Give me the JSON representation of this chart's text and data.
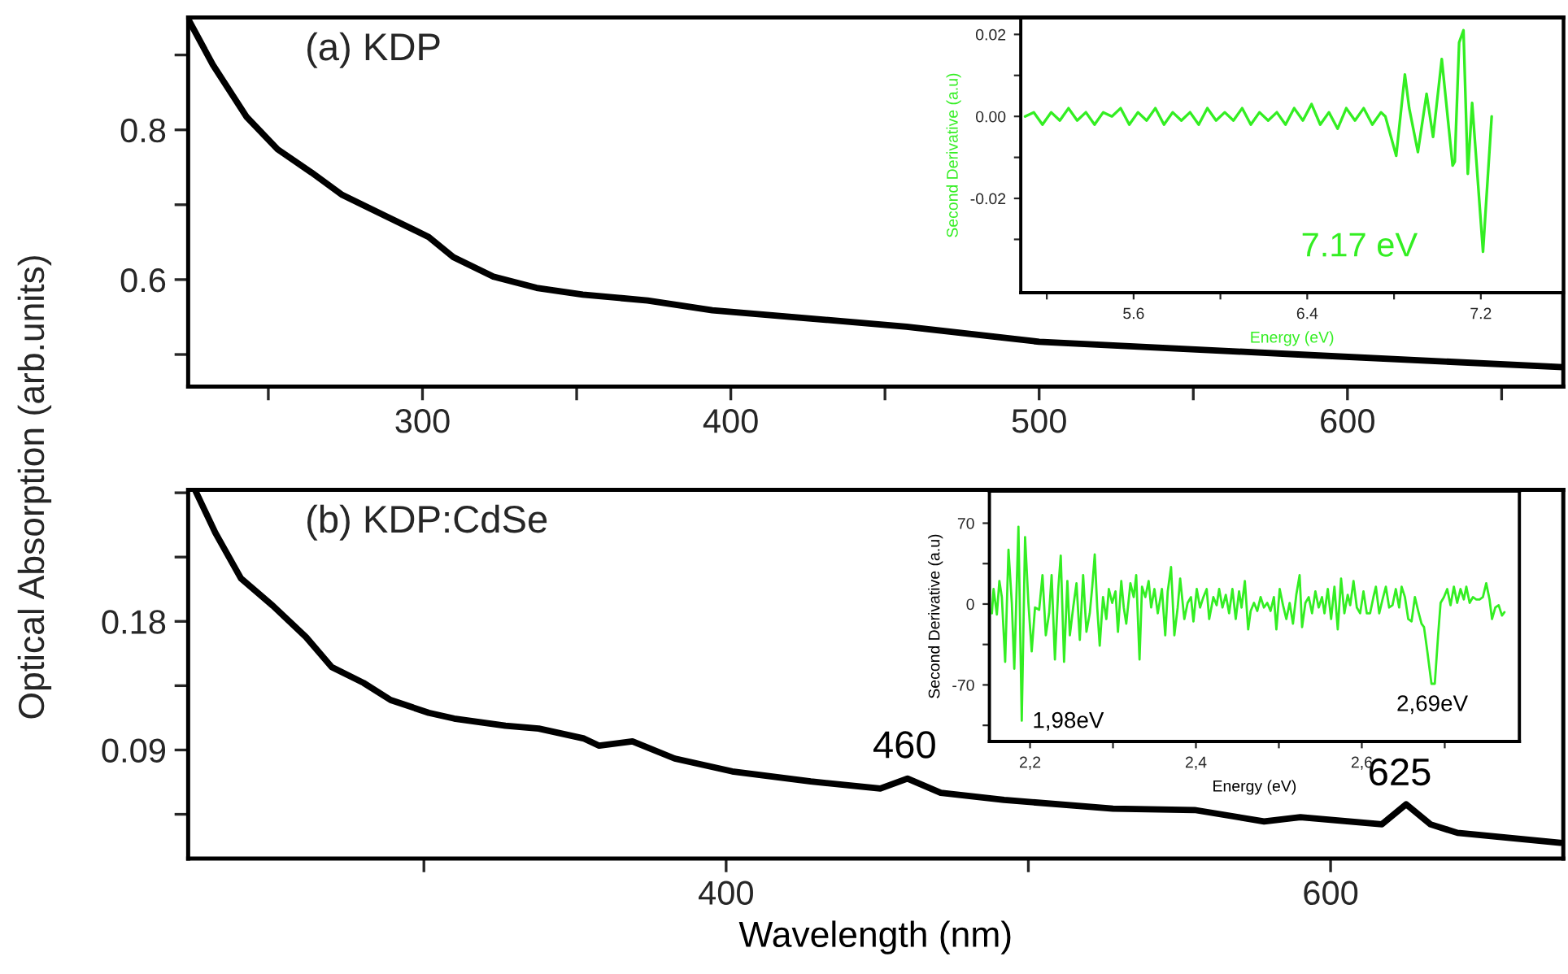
{
  "chart_data": [
    {
      "type": "line",
      "title": "(a) KDP",
      "ylabel": "Optical Absorption (arb.units)",
      "x": [
        224,
        232,
        243,
        253,
        264,
        274,
        289,
        302,
        310,
        323,
        337,
        352,
        373,
        394,
        426,
        457,
        485,
        500,
        584,
        670
      ],
      "series": [
        {
          "color": "#000000",
          "values": [
            0.948,
            0.887,
            0.817,
            0.774,
            0.743,
            0.713,
            0.683,
            0.657,
            0.63,
            0.604,
            0.589,
            0.58,
            0.572,
            0.559,
            0.548,
            0.537,
            0.524,
            0.517,
            0.5,
            0.483
          ]
        }
      ],
      "xlim": [
        224,
        670
      ],
      "ylim": [
        0.457,
        0.95
      ],
      "xticks": [
        {
          "value": 250,
          "label": null
        },
        300,
        {
          "value": 350,
          "label": null
        },
        400,
        {
          "value": 450,
          "label": null
        },
        500,
        {
          "value": 550,
          "label": null
        },
        600,
        {
          "value": 650,
          "label": null
        }
      ],
      "yticks": [
        {
          "value": 0.5,
          "label": null
        },
        0.6,
        {
          "value": 0.7,
          "label": null
        },
        0.8,
        {
          "value": 0.9,
          "label": null
        }
      ]
    },
    {
      "type": "line",
      "xlabel": "Energy (eV)",
      "ylabel": "Second Derivative (a.u)",
      "annotations": [
        "7.17 eV"
      ],
      "x": [
        5.1,
        5.14,
        5.18,
        5.22,
        5.26,
        5.3,
        5.34,
        5.38,
        5.42,
        5.46,
        5.5,
        5.54,
        5.58,
        5.62,
        5.66,
        5.7,
        5.74,
        5.78,
        5.82,
        5.86,
        5.9,
        5.94,
        5.98,
        6.02,
        6.06,
        6.1,
        6.14,
        6.18,
        6.22,
        6.26,
        6.3,
        6.34,
        6.38,
        6.42,
        6.46,
        6.5,
        6.54,
        6.58,
        6.62,
        6.66,
        6.7,
        6.74,
        6.76,
        6.81,
        6.85,
        6.87,
        6.91,
        6.95,
        6.98,
        7.02,
        7.07,
        7.08,
        7.1,
        7.12,
        7.14,
        7.16,
        7.21,
        7.25
      ],
      "series": [
        {
          "color": "#33ee22",
          "values": [
            0.0,
            0.001,
            -0.002,
            0.001,
            -0.001,
            0.002,
            -0.001,
            0.001,
            -0.002,
            0.001,
            0.0,
            0.002,
            -0.002,
            0.001,
            -0.001,
            0.002,
            -0.002,
            0.001,
            -0.001,
            0.001,
            -0.002,
            0.002,
            -0.001,
            0.001,
            -0.001,
            0.002,
            -0.002,
            0.001,
            -0.001,
            0.001,
            -0.002,
            0.002,
            -0.001,
            0.003,
            -0.002,
            0.001,
            -0.003,
            0.002,
            -0.001,
            0.002,
            -0.002,
            0.001,
            0.0,
            -0.0096,
            0.0102,
            0.002,
            -0.0087,
            0.0055,
            -0.005,
            0.014,
            -0.012,
            -0.011,
            0.018,
            0.021,
            -0.014,
            0.0033,
            -0.033,
            0.0
          ]
        }
      ],
      "xlim": [
        5.08,
        7.58
      ],
      "ylim": [
        -0.043,
        0.024
      ],
      "xticks": [
        {
          "value": 5.2,
          "label": null
        },
        5.6,
        {
          "value": 6.0,
          "label": null
        },
        6.4,
        {
          "value": 6.8,
          "label": null
        },
        7.2
      ],
      "yticks": [
        {
          "value": -0.03,
          "label": null
        },
        -0.02,
        {
          "value": -0.01,
          "label": null
        },
        {
          "value": 0,
          "label": "0.00"
        },
        {
          "value": 0.01,
          "label": null
        },
        0.02
      ]
    },
    {
      "type": "line",
      "title": "(b) KDP:CdSe",
      "xlabel": "Wavelength (nm)",
      "annotations": [
        "460",
        "625"
      ],
      "x": [
        224.5,
        231,
        239.5,
        250,
        261,
        269.5,
        280,
        289,
        301.6,
        310,
        327,
        338,
        353,
        358,
        369,
        383,
        402,
        428,
        451,
        460,
        471,
        492,
        528,
        555,
        578,
        590,
        617,
        625,
        633,
        642,
        676
      ],
      "series": [
        {
          "color": "#000000",
          "values": [
            0.271,
            0.242,
            0.21,
            0.191,
            0.169,
            0.148,
            0.137,
            0.125,
            0.116,
            0.112,
            0.107,
            0.105,
            0.098,
            0.093,
            0.096,
            0.084,
            0.075,
            0.068,
            0.063,
            0.07,
            0.06,
            0.055,
            0.049,
            0.048,
            0.04,
            0.043,
            0.038,
            0.052,
            0.038,
            0.032,
            0.025
          ]
        }
      ],
      "xlim": [
        222,
        677
      ],
      "ylim": [
        0.014,
        0.272
      ],
      "xticks": [
        {
          "value": 300,
          "label": null
        },
        400,
        {
          "value": 500,
          "label": null
        },
        600
      ],
      "yticks": [
        {
          "value": 0.045,
          "label": null
        },
        0.09,
        {
          "value": 0.135,
          "label": null
        },
        0.18,
        {
          "value": 0.225,
          "label": null
        },
        {
          "value": 0.27,
          "label": null
        }
      ]
    },
    {
      "type": "line",
      "xlabel": "Energy (eV)",
      "ylabel": "Second Derivative (a.u)",
      "annotations": [
        "1,98eV",
        "2,69eV"
      ],
      "x": [
        2.154,
        2.156,
        2.16,
        2.163,
        2.166,
        2.17,
        2.174,
        2.178,
        2.181,
        2.186,
        2.19,
        2.194,
        2.198,
        2.202,
        2.206,
        2.211,
        2.215,
        2.219,
        2.223,
        2.226,
        2.23,
        2.234,
        2.237,
        2.241,
        2.245,
        2.248,
        2.252,
        2.256,
        2.26,
        2.264,
        2.268,
        2.272,
        2.275,
        2.278,
        2.281,
        2.284,
        2.288,
        2.292,
        2.295,
        2.299,
        2.303,
        2.306,
        2.31,
        2.313,
        2.316,
        2.321,
        2.325,
        2.328,
        2.332,
        2.335,
        2.339,
        2.343,
        2.346,
        2.35,
        2.354,
        2.359,
        2.363,
        2.366,
        2.37,
        2.374,
        2.378,
        2.381,
        2.386,
        2.39,
        2.394,
        2.397,
        2.401,
        2.405,
        2.409,
        2.413,
        2.416,
        2.421,
        2.425,
        2.428,
        2.432,
        2.436,
        2.44,
        2.444,
        2.448,
        2.452,
        2.455,
        2.459,
        2.463,
        2.466,
        2.47,
        2.474,
        2.478,
        2.482,
        2.486,
        2.49,
        2.494,
        2.497,
        2.501,
        2.505,
        2.509,
        2.513,
        2.517,
        2.521,
        2.525,
        2.528,
        2.532,
        2.536,
        2.54,
        2.544,
        2.548,
        2.552,
        2.555,
        2.559,
        2.563,
        2.567,
        2.571,
        2.575,
        2.579,
        2.583,
        2.586,
        2.59,
        2.594,
        2.598,
        2.602,
        2.606,
        2.61,
        2.614,
        2.617,
        2.621,
        2.625,
        2.629,
        2.633,
        2.637,
        2.641,
        2.645,
        2.648,
        2.652,
        2.656,
        2.66,
        2.664,
        2.668,
        2.672,
        2.675,
        2.679,
        2.684,
        2.688,
        2.692,
        2.695,
        2.699,
        2.703,
        2.707,
        2.711,
        2.715,
        2.719,
        2.723,
        2.726,
        2.73,
        2.734,
        2.738,
        2.742,
        2.746,
        2.75,
        2.754,
        2.757,
        2.761,
        2.765,
        2.769,
        2.772
      ],
      "series": [
        {
          "color": "#33ee22",
          "values": [
            -8,
            13,
            -9,
            20,
            6,
            -50,
            47,
            1,
            -56,
            67,
            -101,
            58,
            1,
            -41,
            -3,
            -5,
            25,
            -27,
            -8,
            25,
            -48,
            13,
            42,
            -50,
            20,
            -27,
            -3,
            18,
            -31,
            25,
            -24,
            -8,
            15,
            43,
            -3,
            -36,
            6,
            -13,
            13,
            1,
            11,
            -24,
            20,
            -3,
            -17,
            18,
            6,
            25,
            -48,
            15,
            6,
            20,
            -3,
            13,
            -8,
            13,
            -27,
            11,
            32,
            -27,
            -3,
            22,
            -13,
            1,
            6,
            -15,
            13,
            -3,
            6,
            13,
            -13,
            6,
            -1,
            13,
            -3,
            8,
            -8,
            13,
            -13,
            11,
            -3,
            20,
            -22,
            -6,
            1,
            -6,
            6,
            -3,
            1,
            -6,
            6,
            -22,
            13,
            -1,
            -13,
            1,
            -17,
            8,
            25,
            -20,
            1,
            6,
            -8,
            11,
            -3,
            6,
            -8,
            13,
            -13,
            15,
            -22,
            22,
            -8,
            8,
            -1,
            20,
            -3,
            -8,
            11,
            -8,
            -8,
            6,
            15,
            -8,
            4,
            15,
            -3,
            -1,
            13,
            -3,
            15,
            6,
            -13,
            -15,
            6,
            -6,
            -17,
            -20,
            -41,
            -69,
            -69,
            -27,
            1,
            6,
            13,
            -1,
            15,
            1,
            13,
            4,
            15,
            1,
            6,
            4,
            4,
            6,
            18,
            4,
            -13,
            -3,
            -1,
            -10,
            -7
          ]
        }
      ],
      "xlim": [
        2.151,
        2.79
      ],
      "ylim": [
        -119,
        97.7
      ],
      "xticks": [
        {
          "value": 2.2,
          "label": "2,2"
        },
        {
          "value": 2.3,
          "label": null
        },
        {
          "value": 2.4,
          "label": "2,4"
        },
        {
          "value": 2.5,
          "label": null
        },
        {
          "value": 2.6,
          "label": "2,6"
        },
        {
          "value": 2.7,
          "label": null
        }
      ],
      "yticks": [
        {
          "value": -105,
          "label": null
        },
        -70,
        {
          "value": -35,
          "label": null
        },
        0,
        {
          "value": 35,
          "label": null
        },
        70
      ]
    }
  ]
}
